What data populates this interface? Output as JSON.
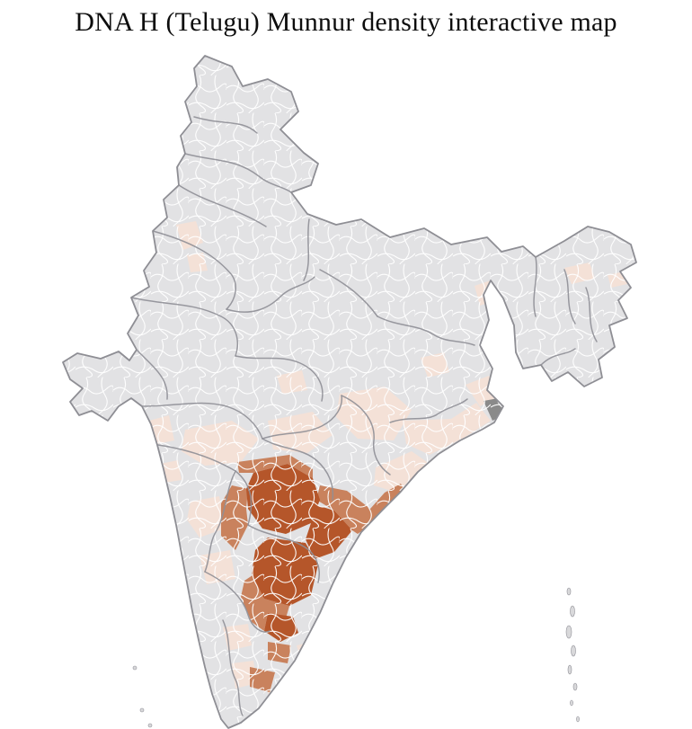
{
  "title": "DNA H (Telugu) Munnur density interactive map",
  "map": {
    "name": "India district-level density choropleth",
    "palette": {
      "background": "#ffffff",
      "district_default": "#e2e2e4",
      "district_border": "#ffffff",
      "state_border": "#8f8f96",
      "outline": "#8e8e94",
      "island": "#d9d9db",
      "low": "#f4e1d7",
      "medium": "#c9825d",
      "high": "#b5562a",
      "marsh": "#8a8a8a"
    },
    "regions": [
      {
        "id": "maharashtra-1",
        "level": "low"
      },
      {
        "id": "vidarbha",
        "level": "low"
      },
      {
        "id": "chhattisgarh",
        "level": "low"
      },
      {
        "id": "odisha-coast",
        "level": "low"
      },
      {
        "id": "east-coast-strip",
        "level": "low"
      },
      {
        "id": "bengal-1",
        "level": "low"
      },
      {
        "id": "bengal-2",
        "level": "low"
      },
      {
        "id": "jharkhand",
        "level": "low"
      },
      {
        "id": "punjab-1",
        "level": "low"
      },
      {
        "id": "punjab-2",
        "level": "low"
      },
      {
        "id": "assam-1",
        "level": "low"
      },
      {
        "id": "assam-2",
        "level": "low"
      },
      {
        "id": "karnataka-1",
        "level": "low"
      },
      {
        "id": "karnataka-2",
        "level": "low"
      },
      {
        "id": "kerala-1",
        "level": "low"
      },
      {
        "id": "kerala-2",
        "level": "low"
      },
      {
        "id": "south-tn",
        "level": "low"
      },
      {
        "id": "tn-east",
        "level": "low"
      },
      {
        "id": "konkan",
        "level": "low"
      },
      {
        "id": "mp-1",
        "level": "low"
      },
      {
        "id": "goa-strip",
        "level": "low"
      },
      {
        "id": "adilabad-band",
        "level": "medium"
      },
      {
        "id": "coastal-ap-north",
        "level": "medium"
      },
      {
        "id": "karnataka-east-band",
        "level": "medium"
      },
      {
        "id": "nellore-south-band",
        "level": "medium"
      },
      {
        "id": "central-tn-1",
        "level": "medium"
      },
      {
        "id": "central-tn-2",
        "level": "medium"
      },
      {
        "id": "telangana-north",
        "level": "high"
      },
      {
        "id": "krishna-delta",
        "level": "high"
      },
      {
        "id": "rayalaseema",
        "level": "high"
      },
      {
        "id": "north-tamilnadu",
        "level": "high"
      },
      {
        "id": "sundarbans",
        "level": "marsh"
      }
    ]
  }
}
